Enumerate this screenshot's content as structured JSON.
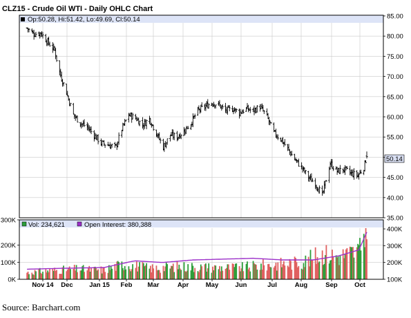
{
  "title": "CLZ15 - Crude Oil WTI - Daily OHLC Chart",
  "ohlc_info": "Op:50.28, Hi:51.42, Lo:49.69, Cl:50.14",
  "volume_info": "Vol: 234,621",
  "oi_info": "Open Interest: 380,388",
  "source": "Source: Barchart.com",
  "colors": {
    "header_bar": "#dde4f7",
    "grid": "#c9c9c9",
    "up_bar": "#2e9e3a",
    "down_bar": "#e06060",
    "open_interest": "#9b2fc9",
    "price_bars": "#000000",
    "last_box": "#d9dff2"
  },
  "chart_data": [
    {
      "type": "ohlc",
      "title": "CLZ15 - Crude Oil WTI - Daily OHLC Chart",
      "x_tick_labels": [
        "Nov 14",
        "Dec",
        "Jan 15",
        "Feb",
        "Mar",
        "Apr",
        "May",
        "Jun",
        "Jul",
        "Aug",
        "Sep",
        "Oct"
      ],
      "y_tick_labels": [
        "85.00",
        "80.00",
        "75.00",
        "70.00",
        "65.00",
        "60.00",
        "55.00",
        "50.00",
        "45.00",
        "40.00",
        "35.00"
      ],
      "ylim": [
        35,
        85
      ],
      "last_close_label": "50.14",
      "close_path": [
        [
          "2014-10-29",
          82.0
        ],
        [
          "2014-11-05",
          80.5
        ],
        [
          "2014-11-12",
          80.8
        ],
        [
          "2014-11-19",
          78.5
        ],
        [
          "2014-11-26",
          76.5
        ],
        [
          "2014-12-01",
          71.0
        ],
        [
          "2014-12-08",
          66.0
        ],
        [
          "2014-12-15",
          60.5
        ],
        [
          "2014-12-22",
          58.5
        ],
        [
          "2014-12-29",
          57.5
        ],
        [
          "2015-01-05",
          55.5
        ],
        [
          "2015-01-12",
          53.5
        ],
        [
          "2015-01-20",
          53.0
        ],
        [
          "2015-01-27",
          52.5
        ],
        [
          "2015-02-02",
          57.0
        ],
        [
          "2015-02-09",
          60.5
        ],
        [
          "2015-02-17",
          59.5
        ],
        [
          "2015-02-23",
          58.0
        ],
        [
          "2015-03-02",
          59.5
        ],
        [
          "2015-03-09",
          56.0
        ],
        [
          "2015-03-16",
          52.5
        ],
        [
          "2015-03-23",
          55.5
        ],
        [
          "2015-03-30",
          55.0
        ],
        [
          "2015-04-06",
          56.5
        ],
        [
          "2015-04-13",
          58.5
        ],
        [
          "2015-04-20",
          61.5
        ],
        [
          "2015-04-27",
          62.5
        ],
        [
          "2015-05-04",
          63.5
        ],
        [
          "2015-05-11",
          63.0
        ],
        [
          "2015-05-18",
          61.5
        ],
        [
          "2015-05-26",
          62.0
        ],
        [
          "2015-06-01",
          61.0
        ],
        [
          "2015-06-08",
          62.0
        ],
        [
          "2015-06-15",
          61.5
        ],
        [
          "2015-06-22",
          62.5
        ],
        [
          "2015-06-29",
          60.0
        ],
        [
          "2015-07-06",
          56.0
        ],
        [
          "2015-07-13",
          54.5
        ],
        [
          "2015-07-20",
          52.0
        ],
        [
          "2015-07-27",
          49.5
        ],
        [
          "2015-08-03",
          47.5
        ],
        [
          "2015-08-10",
          45.0
        ],
        [
          "2015-08-17",
          43.5
        ],
        [
          "2015-08-24",
          40.5
        ],
        [
          "2015-08-28",
          44.5
        ],
        [
          "2015-09-01",
          48.5
        ],
        [
          "2015-09-08",
          46.5
        ],
        [
          "2015-09-15",
          47.0
        ],
        [
          "2015-09-22",
          46.0
        ],
        [
          "2015-09-29",
          45.5
        ],
        [
          "2015-10-05",
          47.5
        ],
        [
          "2015-10-08",
          50.14
        ]
      ]
    },
    {
      "type": "bar",
      "title": "Volume / Open Interest",
      "y_tick_labels_left": [
        "300K",
        "200K",
        "100K",
        "0K"
      ],
      "y_tick_labels_right": [
        "400K",
        "300K",
        "200K",
        "100K"
      ],
      "volume_ylim": [
        0,
        300000
      ],
      "volume_path": [
        [
          "2014-10-29",
          40000
        ],
        [
          "2014-11-20",
          50000
        ],
        [
          "2014-12-15",
          60000
        ],
        [
          "2015-01-15",
          55000
        ],
        [
          "2015-02-04",
          90000
        ],
        [
          "2015-03-02",
          65000
        ],
        [
          "2015-04-01",
          75000
        ],
        [
          "2015-05-01",
          70000
        ],
        [
          "2015-06-01",
          68000
        ],
        [
          "2015-07-01",
          85000
        ],
        [
          "2015-08-03",
          100000
        ],
        [
          "2015-08-25",
          150000
        ],
        [
          "2015-09-10",
          135000
        ],
        [
          "2015-10-01",
          170000
        ],
        [
          "2015-10-07",
          320000
        ],
        [
          "2015-10-08",
          234621
        ]
      ],
      "open_interest_ylim": [
        100000,
        425000
      ],
      "open_interest": [
        [
          "2014-10-29",
          160000
        ],
        [
          "2014-12-01",
          165000
        ],
        [
          "2015-01-15",
          170000
        ],
        [
          "2015-02-15",
          210000
        ],
        [
          "2015-03-15",
          200000
        ],
        [
          "2015-04-15",
          215000
        ],
        [
          "2015-05-15",
          220000
        ],
        [
          "2015-06-15",
          225000
        ],
        [
          "2015-07-15",
          215000
        ],
        [
          "2015-08-15",
          215000
        ],
        [
          "2015-09-10",
          240000
        ],
        [
          "2015-09-30",
          275000
        ],
        [
          "2015-10-08",
          380388
        ]
      ]
    }
  ]
}
